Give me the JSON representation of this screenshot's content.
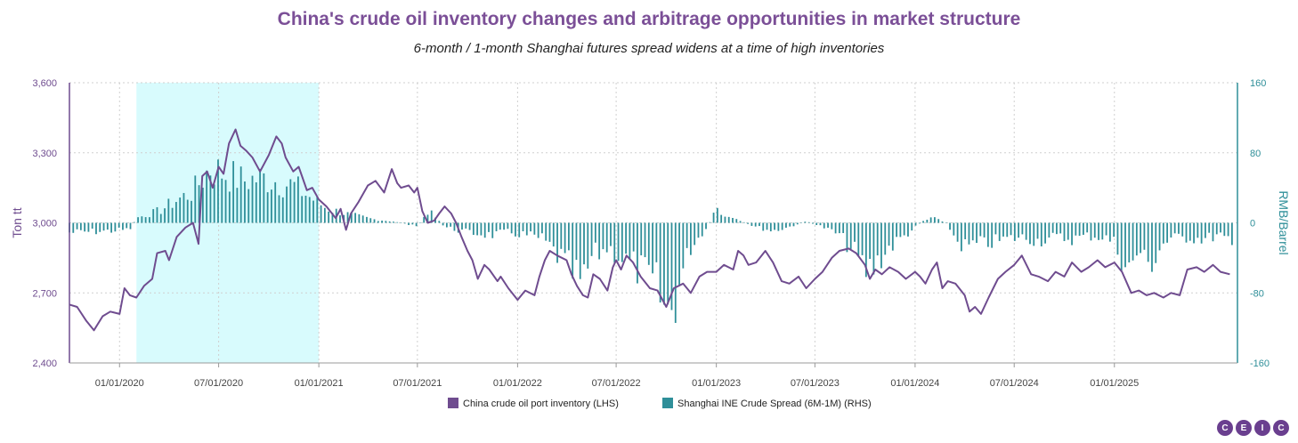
{
  "title": "China's crude oil inventory changes and arbitrage opportunities in market structure",
  "subtitle": "6-month / 1-month Shanghai futures spread widens at a time of high inventories",
  "logo_letters": [
    "C",
    "E",
    "I",
    "C"
  ],
  "colors": {
    "title": "#7b4f97",
    "inventory": "#6f4c8f",
    "spread": "#2f8f99",
    "highlight": "#d8fbfd",
    "right_axis": "#2f8f99",
    "left_axis": "#6f4c8f"
  },
  "chart_data": {
    "type": "line+bar",
    "title": "China's crude oil inventory changes and arbitrage opportunities in market structure",
    "subtitle": "6-month / 1-month Shanghai futures spread widens at a time of high inventories",
    "x_ticks": [
      "01/01/2020",
      "07/01/2020",
      "01/01/2021",
      "07/01/2021",
      "01/01/2022",
      "07/01/2022",
      "01/01/2023",
      "07/01/2023",
      "01/01/2024",
      "07/01/2024",
      "01/01/2025"
    ],
    "x_range": [
      "2019-10-01",
      "2025-08-15"
    ],
    "left_axis": {
      "label": "Ton tt",
      "min": 2400,
      "max": 3600,
      "ticks": [
        "2,400",
        "2,700",
        "3,000",
        "3,300",
        "3,600"
      ]
    },
    "right_axis": {
      "label": "RMB/Barrel",
      "min": -160,
      "max": 160,
      "ticks": [
        "-160",
        "-80",
        "0",
        "80",
        "160"
      ]
    },
    "highlight_range": [
      "2020-02-01",
      "2021-01-01"
    ],
    "grid": true,
    "legend_position": "bottom-center",
    "series": [
      {
        "name": "China crude oil port inventory (LHS)",
        "type": "line",
        "axis": "left",
        "points": [
          [
            "2019-10-01",
            2650
          ],
          [
            "2019-10-15",
            2640
          ],
          [
            "2019-11-01",
            2580
          ],
          [
            "2019-11-15",
            2540
          ],
          [
            "2019-12-01",
            2600
          ],
          [
            "2019-12-15",
            2620
          ],
          [
            "2020-01-01",
            2610
          ],
          [
            "2020-01-10",
            2720
          ],
          [
            "2020-01-20",
            2690
          ],
          [
            "2020-02-01",
            2680
          ],
          [
            "2020-02-15",
            2730
          ],
          [
            "2020-03-01",
            2760
          ],
          [
            "2020-03-10",
            2870
          ],
          [
            "2020-03-25",
            2880
          ],
          [
            "2020-04-01",
            2840
          ],
          [
            "2020-04-15",
            2940
          ],
          [
            "2020-05-01",
            2980
          ],
          [
            "2020-05-15",
            3000
          ],
          [
            "2020-05-25",
            2910
          ],
          [
            "2020-06-01",
            3200
          ],
          [
            "2020-06-10",
            3220
          ],
          [
            "2020-06-20",
            3150
          ],
          [
            "2020-07-01",
            3240
          ],
          [
            "2020-07-10",
            3210
          ],
          [
            "2020-07-20",
            3340
          ],
          [
            "2020-08-01",
            3400
          ],
          [
            "2020-08-10",
            3330
          ],
          [
            "2020-08-20",
            3310
          ],
          [
            "2020-09-01",
            3280
          ],
          [
            "2020-09-15",
            3220
          ],
          [
            "2020-10-01",
            3290
          ],
          [
            "2020-10-15",
            3370
          ],
          [
            "2020-10-25",
            3340
          ],
          [
            "2020-11-01",
            3280
          ],
          [
            "2020-11-15",
            3220
          ],
          [
            "2020-11-25",
            3240
          ],
          [
            "2020-12-01",
            3200
          ],
          [
            "2020-12-10",
            3140
          ],
          [
            "2020-12-20",
            3150
          ],
          [
            "2021-01-01",
            3100
          ],
          [
            "2021-01-15",
            3070
          ],
          [
            "2021-02-01",
            3020
          ],
          [
            "2021-02-10",
            3060
          ],
          [
            "2021-02-20",
            2970
          ],
          [
            "2021-03-01",
            3040
          ],
          [
            "2021-03-15",
            3090
          ],
          [
            "2021-04-01",
            3160
          ],
          [
            "2021-04-15",
            3180
          ],
          [
            "2021-05-01",
            3130
          ],
          [
            "2021-05-15",
            3230
          ],
          [
            "2021-05-25",
            3170
          ],
          [
            "2021-06-01",
            3150
          ],
          [
            "2021-06-15",
            3160
          ],
          [
            "2021-06-25",
            3130
          ],
          [
            "2021-07-01",
            3150
          ],
          [
            "2021-07-10",
            3050
          ],
          [
            "2021-07-20",
            3000
          ],
          [
            "2021-08-01",
            3010
          ],
          [
            "2021-08-10",
            3040
          ],
          [
            "2021-08-20",
            3070
          ],
          [
            "2021-09-01",
            3040
          ],
          [
            "2021-09-10",
            3000
          ],
          [
            "2021-09-20",
            2940
          ],
          [
            "2021-10-01",
            2880
          ],
          [
            "2021-10-10",
            2840
          ],
          [
            "2021-10-20",
            2760
          ],
          [
            "2021-11-01",
            2820
          ],
          [
            "2021-11-10",
            2800
          ],
          [
            "2021-11-25",
            2750
          ],
          [
            "2021-12-01",
            2770
          ],
          [
            "2021-12-15",
            2720
          ],
          [
            "2022-01-01",
            2670
          ],
          [
            "2022-01-15",
            2710
          ],
          [
            "2022-02-01",
            2690
          ],
          [
            "2022-02-10",
            2770
          ],
          [
            "2022-02-20",
            2840
          ],
          [
            "2022-03-01",
            2880
          ],
          [
            "2022-03-15",
            2860
          ],
          [
            "2022-04-01",
            2840
          ],
          [
            "2022-04-10",
            2780
          ],
          [
            "2022-04-20",
            2730
          ],
          [
            "2022-05-01",
            2690
          ],
          [
            "2022-05-10",
            2680
          ],
          [
            "2022-05-20",
            2780
          ],
          [
            "2022-06-01",
            2760
          ],
          [
            "2022-06-15",
            2710
          ],
          [
            "2022-06-25",
            2810
          ],
          [
            "2022-07-01",
            2840
          ],
          [
            "2022-07-10",
            2800
          ],
          [
            "2022-07-20",
            2860
          ],
          [
            "2022-08-01",
            2830
          ],
          [
            "2022-08-15",
            2770
          ],
          [
            "2022-09-01",
            2720
          ],
          [
            "2022-09-15",
            2710
          ],
          [
            "2022-10-01",
            2640
          ],
          [
            "2022-10-15",
            2720
          ],
          [
            "2022-11-01",
            2740
          ],
          [
            "2022-11-15",
            2700
          ],
          [
            "2022-12-01",
            2770
          ],
          [
            "2022-12-15",
            2790
          ],
          [
            "2023-01-01",
            2790
          ],
          [
            "2023-01-15",
            2820
          ],
          [
            "2023-02-01",
            2800
          ],
          [
            "2023-02-10",
            2880
          ],
          [
            "2023-02-20",
            2860
          ],
          [
            "2023-03-01",
            2820
          ],
          [
            "2023-03-15",
            2830
          ],
          [
            "2023-04-01",
            2880
          ],
          [
            "2023-04-15",
            2830
          ],
          [
            "2023-05-01",
            2750
          ],
          [
            "2023-05-15",
            2740
          ],
          [
            "2023-06-01",
            2770
          ],
          [
            "2023-06-15",
            2720
          ],
          [
            "2023-07-01",
            2760
          ],
          [
            "2023-07-15",
            2790
          ],
          [
            "2023-08-01",
            2850
          ],
          [
            "2023-08-15",
            2880
          ],
          [
            "2023-09-01",
            2890
          ],
          [
            "2023-09-15",
            2870
          ],
          [
            "2023-10-01",
            2820
          ],
          [
            "2023-10-10",
            2760
          ],
          [
            "2023-10-20",
            2800
          ],
          [
            "2023-11-01",
            2780
          ],
          [
            "2023-11-15",
            2810
          ],
          [
            "2023-12-01",
            2790
          ],
          [
            "2023-12-15",
            2760
          ],
          [
            "2024-01-01",
            2790
          ],
          [
            "2024-01-10",
            2770
          ],
          [
            "2024-01-20",
            2740
          ],
          [
            "2024-02-01",
            2800
          ],
          [
            "2024-02-10",
            2830
          ],
          [
            "2024-02-20",
            2720
          ],
          [
            "2024-03-01",
            2750
          ],
          [
            "2024-03-15",
            2740
          ],
          [
            "2024-04-01",
            2690
          ],
          [
            "2024-04-10",
            2620
          ],
          [
            "2024-04-20",
            2640
          ],
          [
            "2024-05-01",
            2610
          ],
          [
            "2024-05-15",
            2680
          ],
          [
            "2024-06-01",
            2760
          ],
          [
            "2024-06-15",
            2790
          ],
          [
            "2024-07-01",
            2820
          ],
          [
            "2024-07-15",
            2860
          ],
          [
            "2024-08-01",
            2780
          ],
          [
            "2024-08-15",
            2770
          ],
          [
            "2024-09-01",
            2750
          ],
          [
            "2024-09-15",
            2790
          ],
          [
            "2024-10-01",
            2770
          ],
          [
            "2024-10-15",
            2830
          ],
          [
            "2024-11-01",
            2790
          ],
          [
            "2024-11-15",
            2810
          ],
          [
            "2024-12-01",
            2840
          ],
          [
            "2024-12-15",
            2810
          ],
          [
            "2025-01-01",
            2830
          ],
          [
            "2025-01-15",
            2790
          ],
          [
            "2025-02-01",
            2700
          ],
          [
            "2025-02-15",
            2710
          ],
          [
            "2025-03-01",
            2690
          ],
          [
            "2025-03-15",
            2700
          ],
          [
            "2025-04-01",
            2680
          ],
          [
            "2025-04-15",
            2700
          ],
          [
            "2025-05-01",
            2690
          ],
          [
            "2025-05-15",
            2800
          ],
          [
            "2025-06-01",
            2810
          ],
          [
            "2025-06-15",
            2790
          ],
          [
            "2025-07-01",
            2820
          ],
          [
            "2025-07-15",
            2790
          ],
          [
            "2025-08-01",
            2780
          ]
        ]
      },
      {
        "name": "Shanghai INE Crude Spread (6M-1M) (RHS)",
        "type": "bar",
        "axis": "right",
        "anchors": [
          [
            "2019-10-01",
            -12
          ],
          [
            "2019-12-15",
            -10
          ],
          [
            "2020-01-20",
            -8
          ],
          [
            "2020-02-01",
            6
          ],
          [
            "2020-03-15",
            15
          ],
          [
            "2020-04-15",
            28
          ],
          [
            "2020-05-15",
            38
          ],
          [
            "2020-06-15",
            68
          ],
          [
            "2020-07-15",
            60
          ],
          [
            "2020-08-15",
            52
          ],
          [
            "2020-09-15",
            55
          ],
          [
            "2020-10-15",
            52
          ],
          [
            "2020-11-15",
            46
          ],
          [
            "2020-12-15",
            32
          ],
          [
            "2021-01-15",
            18
          ],
          [
            "2021-02-15",
            12
          ],
          [
            "2021-03-15",
            8
          ],
          [
            "2021-04-15",
            4
          ],
          [
            "2021-05-15",
            2
          ],
          [
            "2021-06-15",
            -2
          ],
          [
            "2021-07-01",
            -5
          ],
          [
            "2021-07-20",
            15
          ],
          [
            "2021-08-01",
            8
          ],
          [
            "2021-08-20",
            -5
          ],
          [
            "2021-10-01",
            -12
          ],
          [
            "2021-11-15",
            -15
          ],
          [
            "2021-12-15",
            -12
          ],
          [
            "2022-01-15",
            -15
          ],
          [
            "2022-02-15",
            -20
          ],
          [
            "2022-03-15",
            -40
          ],
          [
            "2022-04-15",
            -65
          ],
          [
            "2022-05-01",
            -80
          ],
          [
            "2022-05-15",
            -45
          ],
          [
            "2022-06-15",
            -30
          ],
          [
            "2022-07-15",
            -45
          ],
          [
            "2022-08-15",
            -60
          ],
          [
            "2022-09-15",
            -80
          ],
          [
            "2022-10-01",
            -115
          ],
          [
            "2022-10-15",
            -100
          ],
          [
            "2022-11-01",
            -60
          ],
          [
            "2022-11-15",
            -30
          ],
          [
            "2022-12-15",
            -5
          ],
          [
            "2023-01-01",
            15
          ],
          [
            "2023-01-15",
            8
          ],
          [
            "2023-02-15",
            2
          ],
          [
            "2023-03-15",
            -5
          ],
          [
            "2023-04-15",
            -10
          ],
          [
            "2023-05-15",
            -5
          ],
          [
            "2023-06-15",
            2
          ],
          [
            "2023-07-15",
            -5
          ],
          [
            "2023-08-15",
            -15
          ],
          [
            "2023-09-15",
            -40
          ],
          [
            "2023-10-01",
            -60
          ],
          [
            "2023-10-15",
            -55
          ],
          [
            "2023-11-15",
            -30
          ],
          [
            "2023-12-15",
            -15
          ],
          [
            "2024-01-15",
            2
          ],
          [
            "2024-02-01",
            8
          ],
          [
            "2024-02-15",
            5
          ],
          [
            "2024-03-01",
            -2
          ],
          [
            "2024-03-15",
            -20
          ],
          [
            "2024-04-01",
            -30
          ],
          [
            "2024-04-15",
            -28
          ],
          [
            "2024-05-15",
            -25
          ],
          [
            "2024-06-15",
            -20
          ],
          [
            "2024-07-15",
            -18
          ],
          [
            "2024-08-15",
            -22
          ],
          [
            "2024-09-15",
            -18
          ],
          [
            "2024-10-15",
            -20
          ],
          [
            "2024-11-15",
            -16
          ],
          [
            "2024-12-15",
            -18
          ],
          [
            "2025-01-01",
            -25
          ],
          [
            "2025-01-15",
            -45
          ],
          [
            "2025-02-01",
            -60
          ],
          [
            "2025-02-15",
            -30
          ],
          [
            "2025-03-01",
            -55
          ],
          [
            "2025-03-15",
            -45
          ],
          [
            "2025-04-01",
            -25
          ],
          [
            "2025-04-15",
            -20
          ],
          [
            "2025-05-15",
            -18
          ],
          [
            "2025-06-15",
            -20
          ],
          [
            "2025-07-15",
            -15
          ],
          [
            "2025-08-10",
            -35
          ]
        ]
      }
    ]
  }
}
